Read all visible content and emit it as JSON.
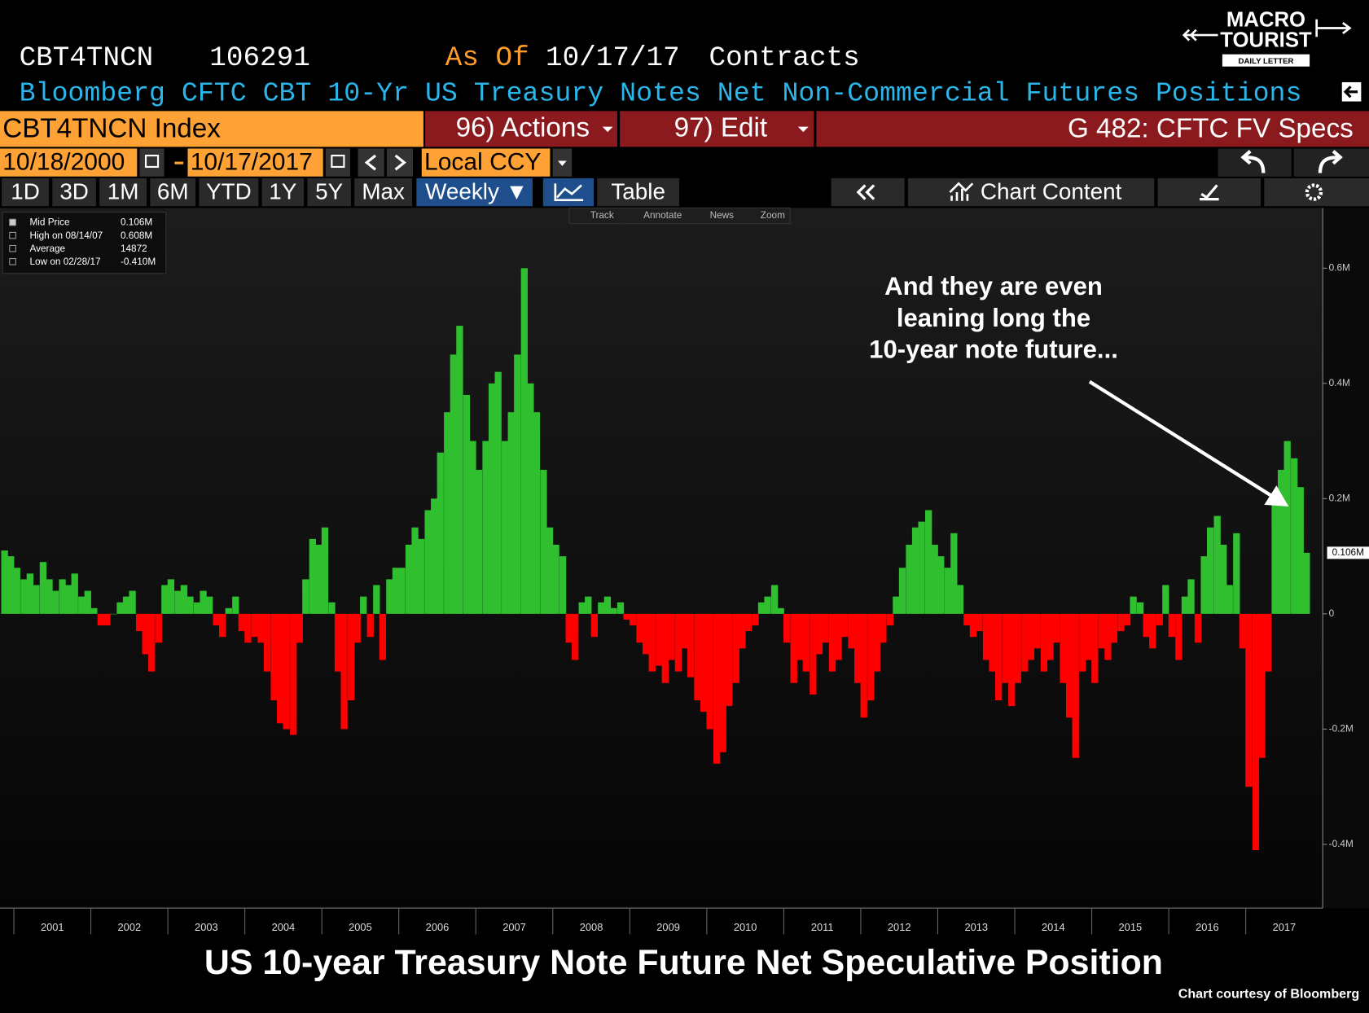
{
  "header": {
    "ticker": "CBT4TNCN",
    "value": "106291",
    "as_of_label": "As Of",
    "as_of_date": "10/17/17",
    "units": "Contracts",
    "title": "Bloomberg CFTC CBT 10-Yr US Treasury Notes Net Non-Commercial Futures Positions"
  },
  "logo": {
    "line1": "MACRO",
    "line2": "TOURIST",
    "line3": "DAILY LETTER"
  },
  "toolbar": {
    "security": "CBT4TNCN Index",
    "actions": "96) Actions",
    "edit": "97) Edit",
    "page": "G 482: CFTC FV Specs",
    "start_date": "10/18/2000",
    "end_date": "10/17/2017",
    "currency": "Local CCY",
    "ranges": [
      "1D",
      "3D",
      "1M",
      "6M",
      "YTD",
      "1Y",
      "5Y",
      "Max"
    ],
    "frequency": "Weekly ▼",
    "table": "Table",
    "chart_content": "Chart Content",
    "tools": [
      "Track",
      "Annotate",
      "News",
      "Zoom"
    ]
  },
  "legend": {
    "rows": [
      {
        "label": "Mid Price",
        "value": "0.106M"
      },
      {
        "label": "High on 08/14/07",
        "value": "0.608M"
      },
      {
        "label": "Average",
        "value": "14872"
      },
      {
        "label": "Low on 02/28/17",
        "value": "-0.410M"
      }
    ]
  },
  "chart_data": {
    "type": "bar",
    "title": "US 10-year Treasury Note Future Net Speculative Position",
    "source": "Chart courtesy of Bloomberg",
    "annotation": [
      "And they are even",
      "leaning long the",
      "10-year note future..."
    ],
    "color_positive": "#2fbf2f",
    "color_negative": "#ff0000",
    "xlim": [
      2000.82,
      2018.0
    ],
    "xticks": [
      2001,
      2002,
      2003,
      2004,
      2005,
      2006,
      2007,
      2008,
      2009,
      2010,
      2011,
      2012,
      2013,
      2014,
      2015,
      2016,
      2017
    ],
    "ylim": [
      -0.5106,
      0.7045
    ],
    "yticks": [
      {
        "value": 0.6,
        "label": "0.6M"
      },
      {
        "value": 0.4,
        "label": "0.4M"
      },
      {
        "value": 0.2,
        "label": "0.2M"
      },
      0,
      {
        "value": -0.2,
        "label": "-0.2M"
      },
      {
        "value": -0.4,
        "label": "-0.4M"
      }
    ],
    "x": [
      2000.88,
      2000.96,
      2001.04,
      2001.13,
      2001.21,
      2001.29,
      2001.38,
      2001.46,
      2001.54,
      2001.63,
      2001.71,
      2001.79,
      2001.88,
      2001.96,
      2002.04,
      2002.13,
      2002.21,
      2002.29,
      2002.38,
      2002.46,
      2002.54,
      2002.63,
      2002.71,
      2002.79,
      2002.88,
      2002.96,
      2003.04,
      2003.13,
      2003.21,
      2003.29,
      2003.38,
      2003.46,
      2003.54,
      2003.63,
      2003.71,
      2003.79,
      2003.88,
      2003.96,
      2004.04,
      2004.13,
      2004.21,
      2004.29,
      2004.38,
      2004.46,
      2004.54,
      2004.63,
      2004.71,
      2004.79,
      2004.88,
      2004.96,
      2005.04,
      2005.13,
      2005.21,
      2005.29,
      2005.38,
      2005.46,
      2005.54,
      2005.63,
      2005.71,
      2005.79,
      2005.88,
      2005.96,
      2006.04,
      2006.13,
      2006.21,
      2006.29,
      2006.38,
      2006.46,
      2006.54,
      2006.63,
      2006.71,
      2006.79,
      2006.88,
      2006.96,
      2007.04,
      2007.13,
      2007.21,
      2007.29,
      2007.38,
      2007.46,
      2007.54,
      2007.63,
      2007.71,
      2007.79,
      2007.88,
      2007.96,
      2008.04,
      2008.13,
      2008.21,
      2008.29,
      2008.38,
      2008.46,
      2008.54,
      2008.63,
      2008.71,
      2008.79,
      2008.88,
      2008.96,
      2009.04,
      2009.13,
      2009.21,
      2009.29,
      2009.38,
      2009.46,
      2009.54,
      2009.63,
      2009.71,
      2009.79,
      2009.88,
      2009.96,
      2010.04,
      2010.13,
      2010.21,
      2010.29,
      2010.38,
      2010.46,
      2010.54,
      2010.63,
      2010.71,
      2010.79,
      2010.88,
      2010.96,
      2011.04,
      2011.13,
      2011.21,
      2011.29,
      2011.38,
      2011.46,
      2011.54,
      2011.63,
      2011.71,
      2011.79,
      2011.88,
      2011.96,
      2012.04,
      2012.13,
      2012.21,
      2012.29,
      2012.38,
      2012.46,
      2012.54,
      2012.63,
      2012.71,
      2012.79,
      2012.88,
      2012.96,
      2013.04,
      2013.13,
      2013.21,
      2013.29,
      2013.38,
      2013.46,
      2013.54,
      2013.63,
      2013.71,
      2013.79,
      2013.88,
      2013.96,
      2014.04,
      2014.13,
      2014.21,
      2014.29,
      2014.38,
      2014.46,
      2014.54,
      2014.63,
      2014.71,
      2014.79,
      2014.88,
      2014.96,
      2015.04,
      2015.13,
      2015.21,
      2015.29,
      2015.38,
      2015.46,
      2015.54,
      2015.63,
      2015.71,
      2015.79,
      2015.88,
      2015.96,
      2016.04,
      2016.13,
      2016.21,
      2016.29,
      2016.38,
      2016.46,
      2016.54,
      2016.63,
      2016.71,
      2016.79,
      2016.88,
      2016.96,
      2017.04,
      2017.13,
      2017.21,
      2017.29,
      2017.38,
      2017.46,
      2017.54,
      2017.63,
      2017.71,
      2017.79
    ],
    "values": [
      0.11,
      0.1,
      0.08,
      0.06,
      0.07,
      0.05,
      0.09,
      0.06,
      0.04,
      0.06,
      0.05,
      0.07,
      0.03,
      0.04,
      0.01,
      -0.02,
      -0.02,
      0.0,
      0.02,
      0.03,
      0.04,
      -0.03,
      -0.07,
      -0.1,
      -0.05,
      0.05,
      0.06,
      0.04,
      0.05,
      0.03,
      0.02,
      0.04,
      0.03,
      -0.02,
      -0.04,
      0.01,
      0.03,
      -0.03,
      -0.05,
      -0.04,
      -0.05,
      -0.1,
      -0.15,
      -0.19,
      -0.2,
      -0.21,
      -0.05,
      0.06,
      0.13,
      0.12,
      0.15,
      0.02,
      -0.1,
      -0.2,
      -0.15,
      -0.05,
      0.03,
      -0.04,
      0.05,
      -0.08,
      0.06,
      0.08,
      0.08,
      0.12,
      0.15,
      0.13,
      0.18,
      0.2,
      0.28,
      0.35,
      0.45,
      0.5,
      0.38,
      0.3,
      0.25,
      0.3,
      0.4,
      0.42,
      0.3,
      0.35,
      0.45,
      0.6,
      0.4,
      0.35,
      0.25,
      0.15,
      0.12,
      0.1,
      -0.05,
      -0.08,
      0.02,
      0.03,
      -0.04,
      0.02,
      0.03,
      0.01,
      0.02,
      -0.01,
      -0.02,
      -0.05,
      -0.07,
      -0.1,
      -0.09,
      -0.12,
      -0.08,
      -0.1,
      -0.06,
      -0.11,
      -0.15,
      -0.17,
      -0.2,
      -0.26,
      -0.24,
      -0.16,
      -0.12,
      -0.06,
      -0.03,
      -0.02,
      0.02,
      0.03,
      0.05,
      0.01,
      -0.05,
      -0.12,
      -0.08,
      -0.1,
      -0.14,
      -0.07,
      -0.05,
      -0.1,
      -0.08,
      -0.04,
      -0.06,
      -0.12,
      -0.18,
      -0.15,
      -0.1,
      -0.05,
      -0.02,
      0.03,
      0.08,
      0.12,
      0.15,
      0.16,
      0.18,
      0.12,
      0.1,
      0.08,
      0.14,
      0.05,
      -0.02,
      -0.04,
      -0.03,
      -0.08,
      -0.1,
      -0.15,
      -0.12,
      -0.16,
      -0.12,
      -0.1,
      -0.08,
      -0.06,
      -0.1,
      -0.08,
      -0.05,
      -0.12,
      -0.18,
      -0.25,
      -0.1,
      -0.08,
      -0.12,
      -0.06,
      -0.08,
      -0.05,
      -0.03,
      -0.02,
      0.03,
      0.02,
      -0.04,
      -0.06,
      -0.02,
      0.05,
      -0.04,
      -0.08,
      0.03,
      0.06,
      -0.05,
      0.1,
      0.15,
      0.17,
      0.12,
      0.05,
      0.14,
      -0.06,
      -0.3,
      -0.41,
      -0.25,
      -0.1,
      0.2,
      0.25,
      0.3,
      0.27,
      0.22,
      0.106
    ]
  }
}
